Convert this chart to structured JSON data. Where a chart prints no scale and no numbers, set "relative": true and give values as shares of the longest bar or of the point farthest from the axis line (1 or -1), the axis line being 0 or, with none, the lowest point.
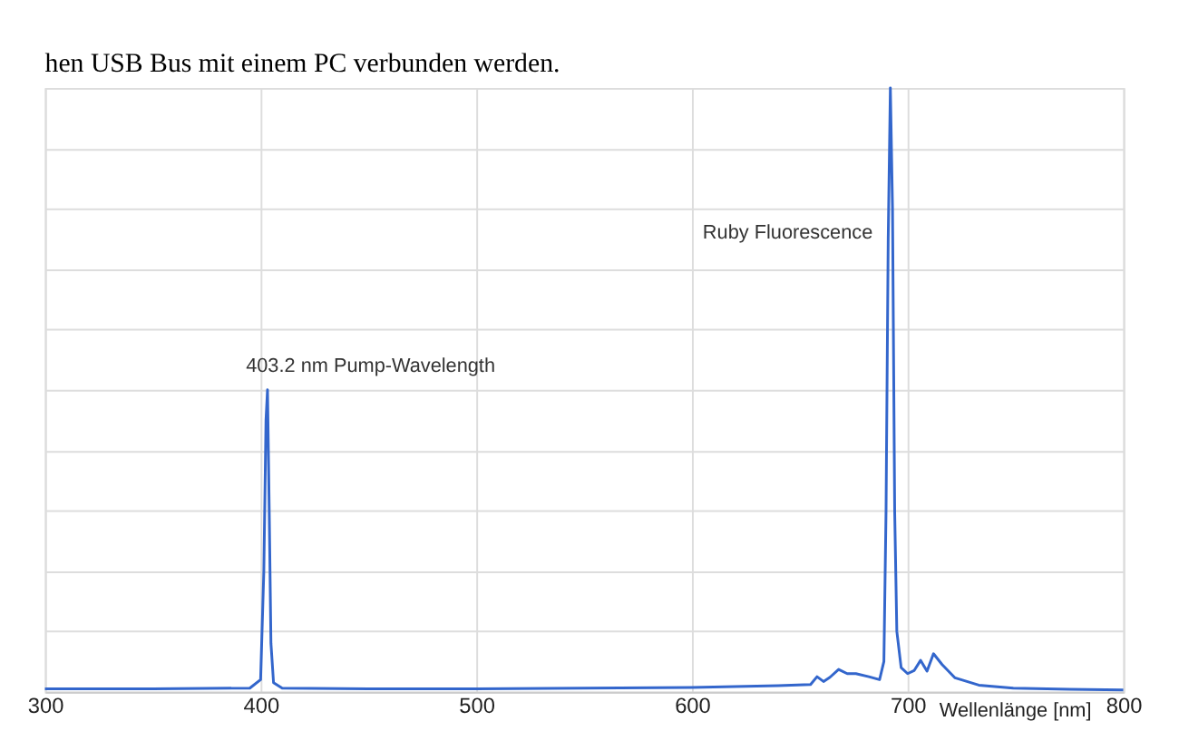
{
  "chart_data": {
    "type": "line",
    "relative": true,
    "xlabel": "Wellenlänge [nm]",
    "xlim": [
      300,
      800
    ],
    "xticks": [
      300,
      400,
      500,
      600,
      700,
      800
    ],
    "grid": true,
    "tick_labels": "x",
    "marker": "none",
    "line_style": "solid",
    "annotations": [
      "hen USB Bus mit einem PC verbunden werden.",
      {
        "text": "403.2 nm Pump-Wavelength",
        "x": 403.2,
        "y": 0.5
      },
      "Ruby Fluorescence"
    ],
    "series": [
      {
        "color": "#3366cc",
        "x": [
          300,
          350,
          395,
          400,
          401.5,
          402.5,
          403.2,
          404,
          404.8,
          406,
          410,
          450,
          500,
          550,
          600,
          640,
          655,
          658,
          661,
          664,
          668,
          672,
          676,
          682,
          687,
          689,
          690,
          691,
          692,
          693,
          694,
          695,
          697,
          700,
          703,
          706,
          709,
          712,
          716,
          722,
          733,
          749,
          775,
          800
        ],
        "values": [
          0.005,
          0.005,
          0.006,
          0.02,
          0.2,
          0.45,
          0.5,
          0.3,
          0.08,
          0.015,
          0.006,
          0.005,
          0.005,
          0.006,
          0.007,
          0.01,
          0.012,
          0.025,
          0.017,
          0.024,
          0.037,
          0.03,
          0.03,
          0.025,
          0.02,
          0.05,
          0.3,
          0.75,
          1,
          0.8,
          0.3,
          0.1,
          0.04,
          0.03,
          0.035,
          0.052,
          0.034,
          0.063,
          0.045,
          0.023,
          0.011,
          0.006,
          0.004,
          0.003
        ]
      }
    ]
  }
}
